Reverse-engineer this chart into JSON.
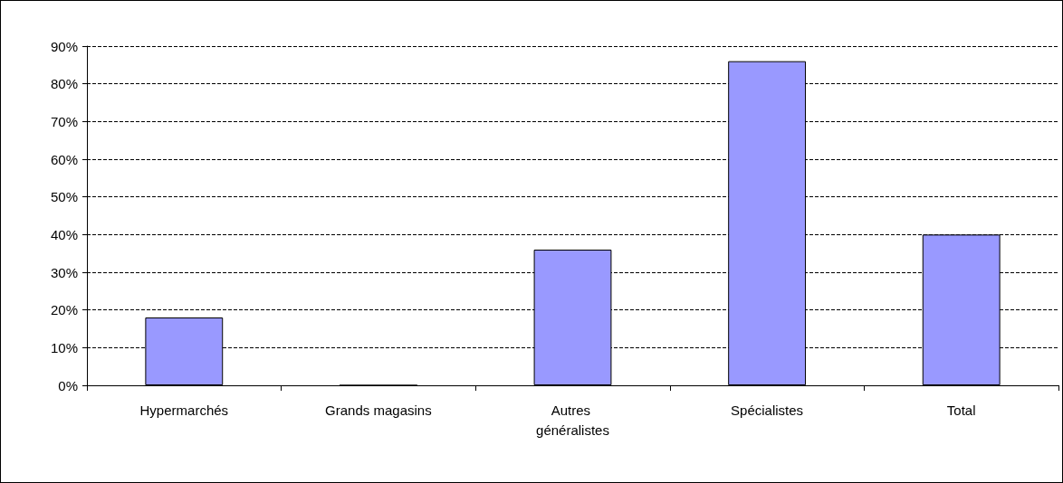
{
  "chart_data": {
    "type": "bar",
    "categories": [
      "Hypermarchés",
      "Grands magasins",
      "Autres généralistes",
      "Spécialistes",
      "Total"
    ],
    "values": [
      18,
      0,
      36,
      86,
      40
    ],
    "color": "#9999ff",
    "ylim": [
      0,
      90
    ],
    "yticks": [
      {
        "value": 0,
        "label": "0%"
      },
      {
        "value": 10,
        "label": "10%"
      },
      {
        "value": 20,
        "label": "20%"
      },
      {
        "value": 30,
        "label": "30%"
      },
      {
        "value": 40,
        "label": "40%"
      },
      {
        "value": 50,
        "label": "50%"
      },
      {
        "value": 60,
        "label": "60%"
      },
      {
        "value": 70,
        "label": "70%"
      },
      {
        "value": 80,
        "label": "80%"
      },
      {
        "value": 90,
        "label": "90%"
      }
    ],
    "grid": "y"
  }
}
